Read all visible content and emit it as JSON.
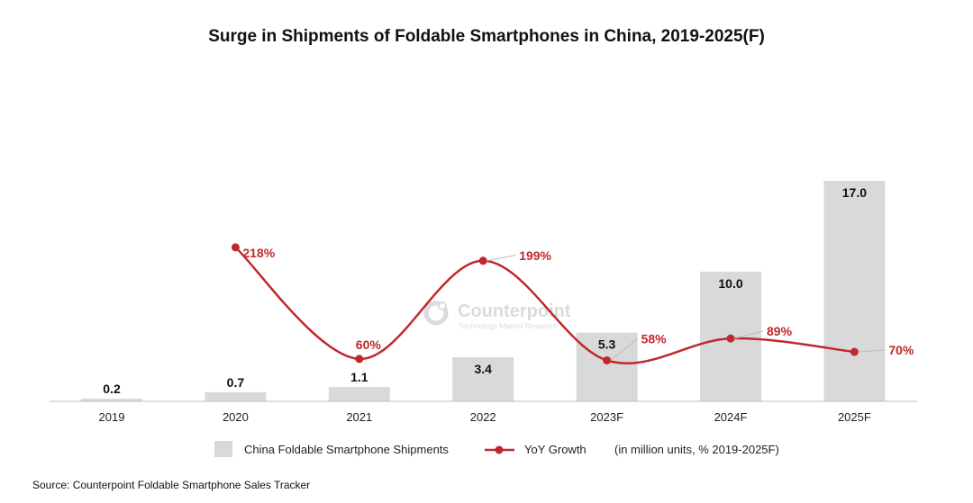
{
  "chart_data": {
    "type": "bar",
    "title": "Surge in Shipments of Foldable Smartphones in China, 2019-2025(F)",
    "categories": [
      "2019",
      "2020",
      "2021",
      "2022",
      "2023F",
      "2024F",
      "2025F"
    ],
    "series": [
      {
        "name": "China Foldable Smartphone Shipments",
        "type": "bar",
        "values": [
          0.2,
          0.7,
          1.1,
          3.4,
          5.3,
          10.0,
          17.0
        ],
        "labels": [
          "0.2",
          "0.7",
          "1.1",
          "3.4",
          "5.3",
          "10.0",
          "17.0"
        ],
        "color": "#d9d9d9"
      },
      {
        "name": "YoY Growth",
        "type": "line",
        "values": [
          null,
          218,
          60,
          199,
          58,
          89,
          70
        ],
        "labels": [
          null,
          "218%",
          "60%",
          "199%",
          "58%",
          "89%",
          "70%"
        ],
        "color": "#c0282d"
      }
    ],
    "units_note": "(in million units, % 2019-2025F)",
    "ylim": [
      0,
      17
    ],
    "grid": false,
    "legend": "bottom"
  },
  "watermark": {
    "brand": "Counterpoint",
    "tagline": "Technology Market Research"
  },
  "source": "Source: Counterpoint Foldable Smartphone Sales Tracker"
}
